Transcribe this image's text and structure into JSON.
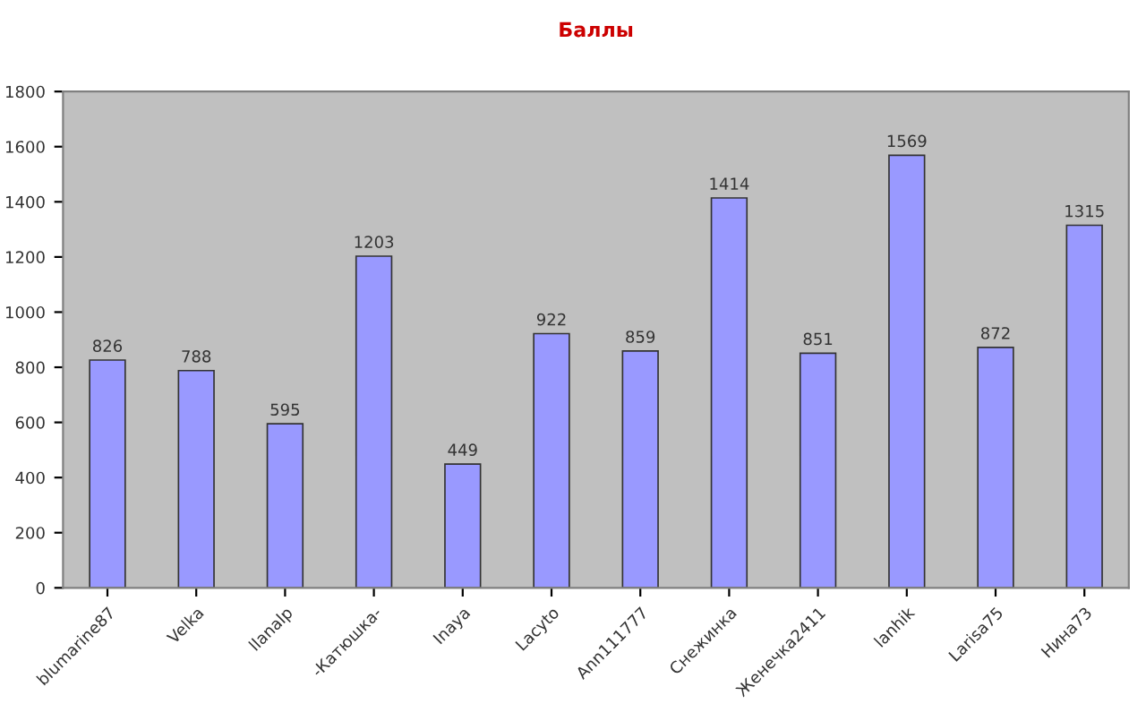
{
  "chart_data": {
    "type": "bar",
    "title": "Баллы",
    "categories": [
      "blumarine87",
      "Velka",
      "llanalp",
      "-Катюшка-",
      "Inaya",
      "Lacyto",
      "Ann111777",
      "Снежинка",
      "Женечка2411",
      "lanhik",
      "Larisa75",
      "Нина73"
    ],
    "values": [
      826,
      788,
      595,
      1203,
      449,
      922,
      859,
      1414,
      851,
      1569,
      872,
      1315
    ],
    "color": "#9999ff",
    "ylim": [
      0,
      1800
    ],
    "yticks": [
      0,
      200,
      400,
      600,
      800,
      1000,
      1200,
      1400,
      1600,
      1800
    ],
    "grid": false,
    "data_labels": true
  }
}
